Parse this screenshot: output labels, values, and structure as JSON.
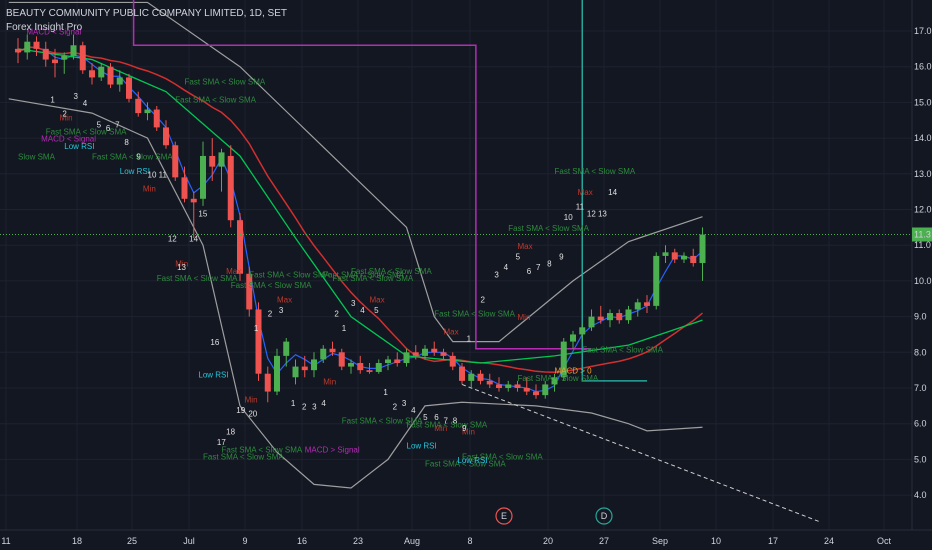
{
  "header": {
    "title": "BEAUTY COMMUNITY PUBLIC COMPANY LIMITED, 1D, SET",
    "indicator": "Forex Insight Pro"
  },
  "colors": {
    "background": "#131722",
    "bull": "#4caf50",
    "bear": "#ef5350",
    "magenta": "#b52bb5",
    "teal": "#26a69a",
    "green_text": "#2e8b3e",
    "red_text": "#c0392b",
    "cyan_text": "#26c6da",
    "orange_text": "#f0a030"
  },
  "chart_data": {
    "type": "candlestick",
    "y_ticks": [
      "17.0",
      "16.0",
      "15.0",
      "14.0",
      "13.0",
      "12.0",
      "11.0",
      "10.0",
      "9.0",
      "8.0",
      "7.0",
      "6.0",
      "5.0",
      "4.0"
    ],
    "ylim": [
      3.0,
      17.5
    ],
    "last_price": "11.3",
    "x_ticks": [
      "11",
      "18",
      "25",
      "Jul",
      "9",
      "16",
      "23",
      "Aug",
      "8",
      "20",
      "27",
      "Sep",
      "10",
      "17",
      "24",
      "Oct"
    ],
    "event_markers": [
      "E",
      "D"
    ],
    "candles": [
      {
        "o": 16.5,
        "h": 16.8,
        "l": 16.1,
        "c": 16.4
      },
      {
        "o": 16.4,
        "h": 16.9,
        "l": 16.2,
        "c": 16.7
      },
      {
        "o": 16.7,
        "h": 16.85,
        "l": 16.3,
        "c": 16.5
      },
      {
        "o": 16.5,
        "h": 16.7,
        "l": 16.0,
        "c": 16.2
      },
      {
        "o": 16.2,
        "h": 16.5,
        "l": 15.7,
        "c": 16.1
      },
      {
        "o": 16.2,
        "h": 16.4,
        "l": 15.8,
        "c": 16.3
      },
      {
        "o": 16.3,
        "h": 16.9,
        "l": 16.2,
        "c": 16.6
      },
      {
        "o": 16.6,
        "h": 16.7,
        "l": 15.8,
        "c": 15.9
      },
      {
        "o": 15.9,
        "h": 16.1,
        "l": 15.5,
        "c": 15.7
      },
      {
        "o": 15.7,
        "h": 16.1,
        "l": 15.6,
        "c": 16.0
      },
      {
        "o": 16.0,
        "h": 16.1,
        "l": 15.4,
        "c": 15.5
      },
      {
        "o": 15.5,
        "h": 15.9,
        "l": 15.3,
        "c": 15.7
      },
      {
        "o": 15.7,
        "h": 15.8,
        "l": 15.0,
        "c": 15.1
      },
      {
        "o": 15.1,
        "h": 15.3,
        "l": 14.6,
        "c": 14.7
      },
      {
        "o": 14.7,
        "h": 15.0,
        "l": 14.5,
        "c": 14.8
      },
      {
        "o": 14.8,
        "h": 14.9,
        "l": 14.2,
        "c": 14.3
      },
      {
        "o": 14.3,
        "h": 14.5,
        "l": 13.7,
        "c": 13.8
      },
      {
        "o": 13.8,
        "h": 13.9,
        "l": 12.8,
        "c": 12.9
      },
      {
        "o": 12.9,
        "h": 13.2,
        "l": 12.2,
        "c": 12.3
      },
      {
        "o": 12.3,
        "h": 12.5,
        "l": 11.2,
        "c": 12.2
      },
      {
        "o": 12.3,
        "h": 13.9,
        "l": 12.1,
        "c": 13.5
      },
      {
        "o": 13.5,
        "h": 14.0,
        "l": 12.8,
        "c": 13.2
      },
      {
        "o": 13.2,
        "h": 13.7,
        "l": 12.5,
        "c": 13.6
      },
      {
        "o": 13.5,
        "h": 13.8,
        "l": 11.5,
        "c": 11.7
      },
      {
        "o": 11.7,
        "h": 11.9,
        "l": 10.0,
        "c": 10.2
      },
      {
        "o": 10.2,
        "h": 10.4,
        "l": 9.0,
        "c": 9.2
      },
      {
        "o": 9.2,
        "h": 9.4,
        "l": 7.2,
        "c": 7.4
      },
      {
        "o": 7.4,
        "h": 7.6,
        "l": 6.6,
        "c": 6.9
      },
      {
        "o": 6.9,
        "h": 8.1,
        "l": 6.8,
        "c": 7.9
      },
      {
        "o": 7.9,
        "h": 8.4,
        "l": 7.6,
        "c": 8.3
      },
      {
        "o": 7.3,
        "h": 7.8,
        "l": 7.1,
        "c": 7.6
      },
      {
        "o": 7.6,
        "h": 7.9,
        "l": 7.3,
        "c": 7.5
      },
      {
        "o": 7.5,
        "h": 8.0,
        "l": 7.3,
        "c": 7.8
      },
      {
        "o": 7.8,
        "h": 8.2,
        "l": 7.7,
        "c": 8.1
      },
      {
        "o": 8.1,
        "h": 8.3,
        "l": 7.9,
        "c": 8.0
      },
      {
        "o": 8.0,
        "h": 8.1,
        "l": 7.5,
        "c": 7.6
      },
      {
        "o": 7.6,
        "h": 7.8,
        "l": 7.4,
        "c": 7.7
      },
      {
        "o": 7.7,
        "h": 7.9,
        "l": 7.4,
        "c": 7.5
      },
      {
        "o": 7.5,
        "h": 7.7,
        "l": 7.4,
        "c": 7.45
      },
      {
        "o": 7.45,
        "h": 7.8,
        "l": 7.4,
        "c": 7.7
      },
      {
        "o": 7.7,
        "h": 7.9,
        "l": 7.5,
        "c": 7.8
      },
      {
        "o": 7.8,
        "h": 8.0,
        "l": 7.6,
        "c": 7.7
      },
      {
        "o": 7.7,
        "h": 8.1,
        "l": 7.6,
        "c": 8.0
      },
      {
        "o": 8.0,
        "h": 8.2,
        "l": 7.8,
        "c": 7.9
      },
      {
        "o": 7.9,
        "h": 8.2,
        "l": 7.8,
        "c": 8.1
      },
      {
        "o": 8.1,
        "h": 8.3,
        "l": 7.9,
        "c": 8.0
      },
      {
        "o": 8.0,
        "h": 8.1,
        "l": 7.8,
        "c": 7.9
      },
      {
        "o": 7.9,
        "h": 8.0,
        "l": 7.5,
        "c": 7.6
      },
      {
        "o": 7.6,
        "h": 7.7,
        "l": 7.1,
        "c": 7.2
      },
      {
        "o": 7.2,
        "h": 7.5,
        "l": 7.0,
        "c": 7.4
      },
      {
        "o": 7.4,
        "h": 7.5,
        "l": 7.1,
        "c": 7.2
      },
      {
        "o": 7.2,
        "h": 7.4,
        "l": 7.0,
        "c": 7.1
      },
      {
        "o": 7.1,
        "h": 7.3,
        "l": 6.9,
        "c": 7.0
      },
      {
        "o": 7.0,
        "h": 7.2,
        "l": 6.9,
        "c": 7.1
      },
      {
        "o": 7.1,
        "h": 7.2,
        "l": 6.9,
        "c": 7.0
      },
      {
        "o": 7.0,
        "h": 7.3,
        "l": 6.8,
        "c": 6.9
      },
      {
        "o": 6.9,
        "h": 7.1,
        "l": 6.7,
        "c": 6.8
      },
      {
        "o": 6.8,
        "h": 7.2,
        "l": 6.7,
        "c": 7.1
      },
      {
        "o": 7.1,
        "h": 7.4,
        "l": 6.9,
        "c": 7.3
      },
      {
        "o": 7.3,
        "h": 8.4,
        "l": 7.2,
        "c": 8.3
      },
      {
        "o": 8.3,
        "h": 8.6,
        "l": 8.1,
        "c": 8.5
      },
      {
        "o": 8.5,
        "h": 8.8,
        "l": 8.3,
        "c": 8.7
      },
      {
        "o": 8.7,
        "h": 9.2,
        "l": 8.6,
        "c": 9.0
      },
      {
        "o": 9.0,
        "h": 9.3,
        "l": 8.8,
        "c": 8.9
      },
      {
        "o": 8.9,
        "h": 9.2,
        "l": 8.7,
        "c": 9.1
      },
      {
        "o": 9.1,
        "h": 9.2,
        "l": 8.8,
        "c": 8.9
      },
      {
        "o": 8.9,
        "h": 9.3,
        "l": 8.8,
        "c": 9.2
      },
      {
        "o": 9.2,
        "h": 9.5,
        "l": 9.0,
        "c": 9.4
      },
      {
        "o": 9.4,
        "h": 9.6,
        "l": 9.1,
        "c": 9.3
      },
      {
        "o": 9.3,
        "h": 10.8,
        "l": 9.2,
        "c": 10.7
      },
      {
        "o": 10.7,
        "h": 11.0,
        "l": 10.5,
        "c": 10.8
      },
      {
        "o": 10.8,
        "h": 10.9,
        "l": 10.5,
        "c": 10.6
      },
      {
        "o": 10.6,
        "h": 10.8,
        "l": 10.5,
        "c": 10.7
      },
      {
        "o": 10.7,
        "h": 10.9,
        "l": 10.4,
        "c": 10.5
      },
      {
        "o": 10.5,
        "h": 11.5,
        "l": 10.0,
        "c": 11.3
      }
    ],
    "labels": [
      {
        "t": "MACD < Signal",
        "c": "magenta",
        "x": 0.9,
        "y": 16.9
      },
      {
        "t": "MACD < Signal",
        "c": "magenta",
        "x": 2.5,
        "y": 13.9
      },
      {
        "t": "Fast SMA < Slow SMA",
        "c": "green",
        "x": 18,
        "y": 15.5
      },
      {
        "t": "Fast SMA < Slow SMA",
        "c": "green",
        "x": 17,
        "y": 15.0
      },
      {
        "t": "Fast SMA < Slow SMA",
        "c": "green",
        "x": 3,
        "y": 14.1
      },
      {
        "t": "Fast SMA < Slow SMA",
        "c": "green",
        "x": 8,
        "y": 13.4
      },
      {
        "t": "Slow SMA",
        "c": "green",
        "x": 0,
        "y": 13.4
      },
      {
        "t": "Low RSI",
        "c": "cyan",
        "x": 5,
        "y": 13.7
      },
      {
        "t": "Low RSI",
        "c": "cyan",
        "x": 11,
        "y": 13.0
      },
      {
        "t": "Fast SMA < Slow SMA",
        "c": "green",
        "x": 15,
        "y": 10.0
      },
      {
        "t": "Fast SMA < Slow SMA",
        "c": "green",
        "x": 25,
        "y": 10.1
      },
      {
        "t": "Fast SMA < Slow SMA",
        "c": "green",
        "x": 23,
        "y": 9.8
      },
      {
        "t": "Fast SMA < Slow SMA",
        "c": "green",
        "x": 33,
        "y": 10.1
      },
      {
        "t": "Fast SMA < Slow SMA",
        "c": "green",
        "x": 36,
        "y": 10.2
      },
      {
        "t": "Fast SMA < Slow SMA",
        "c": "green",
        "x": 34,
        "y": 10.0
      },
      {
        "t": "Fast SMA < Slow SMA",
        "c": "green",
        "x": 45,
        "y": 9.0
      },
      {
        "t": "Fast SMA < Slow SMA",
        "c": "green",
        "x": 53,
        "y": 11.4
      },
      {
        "t": "Fast SMA < Slow SMA",
        "c": "green",
        "x": 58,
        "y": 13.0
      },
      {
        "t": "Fast SMA < Slow SMA",
        "c": "green",
        "x": 61,
        "y": 8.0
      },
      {
        "t": "Fast SMA < Slow SMA",
        "c": "green",
        "x": 54,
        "y": 7.2
      },
      {
        "t": "Fast SMA < Slow SMA",
        "c": "green",
        "x": 22,
        "y": 5.2
      },
      {
        "t": "Fast SMA < Slow SMA",
        "c": "green",
        "x": 20,
        "y": 5.0
      },
      {
        "t": "Fast SMA < Slow SMA",
        "c": "green",
        "x": 42,
        "y": 5.9
      },
      {
        "t": "Fast SMA < Slow SMA",
        "c": "green",
        "x": 44,
        "y": 4.8
      },
      {
        "t": "Fast SMA < Slow SMA",
        "c": "green",
        "x": 48,
        "y": 5.0
      },
      {
        "t": "Fast SMA < Slow SMA",
        "c": "green",
        "x": 35,
        "y": 6.0
      },
      {
        "t": "MACD > Signal",
        "c": "magenta",
        "x": 31,
        "y": 5.2
      },
      {
        "t": "Low RSI",
        "c": "cyan",
        "x": 42,
        "y": 5.3
      },
      {
        "t": "Low RSI",
        "c": "cyan",
        "x": 47.5,
        "y": 4.9
      },
      {
        "t": "Low RSI",
        "c": "cyan",
        "x": 19.5,
        "y": 7.3
      },
      {
        "t": "MACD > 0",
        "c": "orange",
        "x": 58,
        "y": 7.4
      },
      {
        "t": "Min",
        "c": "red",
        "x": 4.5,
        "y": 14.5
      },
      {
        "t": "Min",
        "c": "red",
        "x": 13.5,
        "y": 12.5
      },
      {
        "t": "Min",
        "c": "red",
        "x": 17,
        "y": 10.4
      },
      {
        "t": "Min",
        "c": "red",
        "x": 24.5,
        "y": 6.6
      },
      {
        "t": "Min",
        "c": "red",
        "x": 33,
        "y": 7.1
      },
      {
        "t": "Min",
        "c": "red",
        "x": 45,
        "y": 5.8
      },
      {
        "t": "Min",
        "c": "red",
        "x": 48,
        "y": 5.7
      },
      {
        "t": "Min",
        "c": "red",
        "x": 54,
        "y": 8.9
      },
      {
        "t": "Max",
        "c": "red",
        "x": 22.5,
        "y": 10.2
      },
      {
        "t": "Max",
        "c": "red",
        "x": 28,
        "y": 9.4
      },
      {
        "t": "Max",
        "c": "red",
        "x": 38,
        "y": 9.4
      },
      {
        "t": "Max",
        "c": "red",
        "x": 46,
        "y": 8.5
      },
      {
        "t": "Max",
        "c": "red",
        "x": 54,
        "y": 10.9
      },
      {
        "t": "Max",
        "c": "red",
        "x": 60.5,
        "y": 12.4
      },
      {
        "t": "1",
        "c": "white",
        "x": 3.5,
        "y": 15.0
      },
      {
        "t": "2",
        "c": "white",
        "x": 4.8,
        "y": 14.6
      },
      {
        "t": "3",
        "c": "white",
        "x": 6,
        "y": 15.1
      },
      {
        "t": "4",
        "c": "white",
        "x": 7,
        "y": 14.9
      },
      {
        "t": "5",
        "c": "white",
        "x": 8.5,
        "y": 14.3
      },
      {
        "t": "6",
        "c": "white",
        "x": 9.5,
        "y": 14.2
      },
      {
        "t": "7",
        "c": "white",
        "x": 10.5,
        "y": 14.3
      },
      {
        "t": "8",
        "c": "white",
        "x": 11.5,
        "y": 13.8
      },
      {
        "t": "9",
        "c": "white",
        "x": 12.8,
        "y": 13.4
      },
      {
        "t": "10",
        "c": "white",
        "x": 14,
        "y": 12.9
      },
      {
        "t": "11",
        "c": "white",
        "x": 15.2,
        "y": 12.9
      },
      {
        "t": "12",
        "c": "white",
        "x": 16.2,
        "y": 11.1
      },
      {
        "t": "13",
        "c": "white",
        "x": 17.2,
        "y": 10.3
      },
      {
        "t": "14",
        "c": "white",
        "x": 18.5,
        "y": 11.1
      },
      {
        "t": "15",
        "c": "white",
        "x": 19.5,
        "y": 11.8
      },
      {
        "t": "16",
        "c": "white",
        "x": 20.8,
        "y": 8.2
      },
      {
        "t": "17",
        "c": "white",
        "x": 21.5,
        "y": 5.4
      },
      {
        "t": "18",
        "c": "white",
        "x": 22.5,
        "y": 5.7
      },
      {
        "t": "19",
        "c": "white",
        "x": 23.6,
        "y": 6.3
      },
      {
        "t": "20",
        "c": "white",
        "x": 24.9,
        "y": 6.2
      },
      {
        "t": "1",
        "c": "white",
        "x": 25.5,
        "y": 8.6
      },
      {
        "t": "2",
        "c": "white",
        "x": 27,
        "y": 9.0
      },
      {
        "t": "3",
        "c": "white",
        "x": 28.2,
        "y": 9.1
      },
      {
        "t": "1",
        "c": "white",
        "x": 29.5,
        "y": 6.5
      },
      {
        "t": "2",
        "c": "white",
        "x": 30.7,
        "y": 6.4
      },
      {
        "t": "3",
        "c": "white",
        "x": 31.8,
        "y": 6.4
      },
      {
        "t": "4",
        "c": "white",
        "x": 32.8,
        "y": 6.5
      },
      {
        "t": "2",
        "c": "white",
        "x": 34.2,
        "y": 9.0
      },
      {
        "t": "1",
        "c": "white",
        "x": 35,
        "y": 8.6
      },
      {
        "t": "3",
        "c": "white",
        "x": 36,
        "y": 9.3
      },
      {
        "t": "4",
        "c": "white",
        "x": 37,
        "y": 9.1
      },
      {
        "t": "5",
        "c": "white",
        "x": 38.5,
        "y": 9.1
      },
      {
        "t": "1",
        "c": "white",
        "x": 39.5,
        "y": 6.8
      },
      {
        "t": "2",
        "c": "white",
        "x": 40.5,
        "y": 6.4
      },
      {
        "t": "3",
        "c": "white",
        "x": 41.5,
        "y": 6.5
      },
      {
        "t": "4",
        "c": "white",
        "x": 42.5,
        "y": 6.3
      },
      {
        "t": "5",
        "c": "white",
        "x": 43.8,
        "y": 6.1
      },
      {
        "t": "6",
        "c": "white",
        "x": 45,
        "y": 6.1
      },
      {
        "t": "7",
        "c": "white",
        "x": 46,
        "y": 6.0
      },
      {
        "t": "8",
        "c": "white",
        "x": 47,
        "y": 6.0
      },
      {
        "t": "9",
        "c": "white",
        "x": 48,
        "y": 5.8
      },
      {
        "t": "1",
        "c": "white",
        "x": 48.5,
        "y": 8.3
      },
      {
        "t": "2",
        "c": "white",
        "x": 50,
        "y": 9.4
      },
      {
        "t": "3",
        "c": "white",
        "x": 51.5,
        "y": 10.1
      },
      {
        "t": "4",
        "c": "white",
        "x": 52.5,
        "y": 10.3
      },
      {
        "t": "5",
        "c": "white",
        "x": 53.8,
        "y": 10.6
      },
      {
        "t": "6",
        "c": "white",
        "x": 55,
        "y": 10.2
      },
      {
        "t": "7",
        "c": "white",
        "x": 56,
        "y": 10.3
      },
      {
        "t": "8",
        "c": "white",
        "x": 57.2,
        "y": 10.4
      },
      {
        "t": "9",
        "c": "white",
        "x": 58.5,
        "y": 10.6
      },
      {
        "t": "10",
        "c": "white",
        "x": 59,
        "y": 11.7
      },
      {
        "t": "11",
        "c": "white",
        "x": 60.3,
        "y": 12.0
      },
      {
        "t": "12",
        "c": "white",
        "x": 61.5,
        "y": 11.8
      },
      {
        "t": "13",
        "c": "white",
        "x": 62.7,
        "y": 11.8
      },
      {
        "t": "14",
        "c": "white",
        "x": 63.8,
        "y": 12.4
      }
    ]
  }
}
